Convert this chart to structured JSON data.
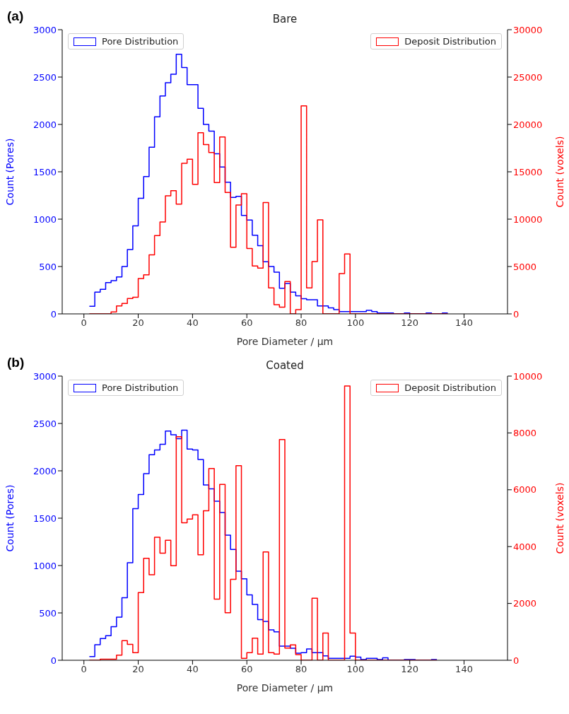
{
  "chart_data": [
    {
      "type": "histogram",
      "title": "Bare",
      "xlabel": "Pore Diameter / μm",
      "ylabel": "Count (Pores)",
      "y2label": "Count (voxels)",
      "annotations": [
        "(a)"
      ],
      "xlim": [
        -8,
        156
      ],
      "xticks": [
        0,
        20,
        40,
        60,
        80,
        100,
        120,
        140
      ],
      "ylim": [
        0,
        3000
      ],
      "yticks": [
        0,
        500,
        1000,
        1500,
        2000,
        2500,
        3000
      ],
      "y2lim": [
        0,
        30000
      ],
      "y2ticks": [
        0,
        5000,
        10000,
        15000,
        20000,
        25000,
        30000
      ],
      "legend": "top",
      "bins": [
        2,
        4,
        6,
        8,
        10,
        12,
        14,
        16,
        18,
        20,
        22,
        24,
        26,
        28,
        30,
        32,
        34,
        36,
        38,
        40,
        42,
        44,
        46,
        48,
        50,
        52,
        54,
        56,
        58,
        60,
        62,
        64,
        66,
        68,
        70,
        72,
        74,
        76,
        78,
        80,
        82,
        84,
        86,
        88,
        90,
        92,
        94,
        96,
        98,
        100,
        102,
        104,
        106,
        108,
        110,
        112,
        114,
        116,
        118,
        120,
        122,
        124,
        126,
        128,
        130,
        132,
        134
      ],
      "series": [
        {
          "name": "Pore Distribution",
          "color": "#0000ff",
          "axis": "y",
          "values": [
            80,
            230,
            260,
            330,
            350,
            390,
            500,
            680,
            930,
            1220,
            1450,
            1760,
            2080,
            2300,
            2440,
            2530,
            2740,
            2600,
            2420,
            2420,
            2170,
            2000,
            1930,
            1690,
            1550,
            1390,
            1230,
            1240,
            1040,
            990,
            830,
            720,
            550,
            500,
            440,
            270,
            320,
            230,
            190,
            160,
            150,
            150,
            84,
            84,
            63,
            45,
            25,
            25,
            25,
            25,
            25,
            37,
            25,
            10,
            10,
            10,
            0,
            0,
            10,
            0,
            0,
            0,
            10,
            0,
            0,
            10
          ]
        },
        {
          "name": "Deposit Distribution",
          "color": "#ff0000",
          "axis": "y2",
          "values": [
            0,
            0,
            0,
            0,
            200,
            840,
            1100,
            1630,
            1760,
            3740,
            4130,
            6240,
            8260,
            9710,
            12470,
            13000,
            11580,
            15890,
            16320,
            13680,
            19130,
            17870,
            17030,
            13870,
            18680,
            12820,
            7030,
            11500,
            12680,
            6900,
            5050,
            4840,
            11760,
            2740,
            970,
            710,
            3420,
            0,
            450,
            21950,
            2740,
            5530,
            9920,
            0,
            0,
            0,
            4260,
            6320,
            0,
            0,
            0,
            0,
            0,
            0,
            0,
            0,
            0,
            0,
            0,
            0,
            0,
            0,
            0,
            0,
            0,
            0
          ]
        }
      ]
    },
    {
      "type": "histogram",
      "title": "Coated",
      "xlabel": "Pore Diameter / μm",
      "ylabel": "Count (Pores)",
      "y2label": "Count (voxels)",
      "annotations": [
        "(b)"
      ],
      "xlim": [
        -8,
        156
      ],
      "xticks": [
        0,
        20,
        40,
        60,
        80,
        100,
        120,
        140
      ],
      "ylim": [
        0,
        3000
      ],
      "yticks": [
        0,
        500,
        1000,
        1500,
        2000,
        2500,
        3000
      ],
      "y2lim": [
        0,
        10000
      ],
      "y2ticks": [
        0,
        2000,
        4000,
        6000,
        8000,
        10000
      ],
      "legend": "top",
      "bins": [
        2,
        4,
        6,
        8,
        10,
        12,
        14,
        16,
        18,
        20,
        22,
        24,
        26,
        28,
        30,
        32,
        34,
        36,
        38,
        40,
        42,
        44,
        46,
        48,
        50,
        52,
        54,
        56,
        58,
        60,
        62,
        64,
        66,
        68,
        70,
        72,
        74,
        76,
        78,
        80,
        82,
        84,
        86,
        88,
        90,
        92,
        94,
        96,
        98,
        100,
        102,
        104,
        106,
        108,
        110,
        112,
        114,
        116,
        118,
        120,
        122,
        124,
        126,
        128,
        130
      ],
      "series": [
        {
          "name": "Pore Distribution",
          "color": "#0000ff",
          "axis": "y",
          "values": [
            40,
            165,
            230,
            260,
            355,
            455,
            660,
            1030,
            1600,
            1750,
            1970,
            2170,
            2220,
            2280,
            2420,
            2380,
            2340,
            2430,
            2230,
            2220,
            2120,
            1850,
            1810,
            1680,
            1560,
            1320,
            1170,
            940,
            860,
            690,
            590,
            430,
            410,
            320,
            300,
            150,
            150,
            126,
            74,
            80,
            120,
            80,
            80,
            47,
            20,
            20,
            20,
            20,
            42,
            34,
            8,
            21,
            21,
            8,
            26,
            0,
            0,
            0,
            8,
            8,
            0,
            0,
            0,
            8
          ]
        },
        {
          "name": "Deposit Distribution",
          "color": "#ff0000",
          "axis": "y2",
          "values": [
            0,
            0,
            40,
            40,
            40,
            180,
            690,
            560,
            270,
            2380,
            3590,
            3010,
            4330,
            3770,
            4220,
            3330,
            7870,
            4840,
            4970,
            5120,
            3710,
            5260,
            6750,
            2150,
            6190,
            1670,
            2850,
            6850,
            70,
            270,
            780,
            220,
            3810,
            270,
            220,
            7770,
            430,
            540,
            200,
            0,
            0,
            2180,
            0,
            960,
            0,
            0,
            0,
            9650,
            960,
            0,
            0,
            0,
            0,
            0,
            0,
            0,
            0,
            0,
            0,
            0,
            0,
            0,
            0,
            0
          ]
        }
      ]
    }
  ]
}
